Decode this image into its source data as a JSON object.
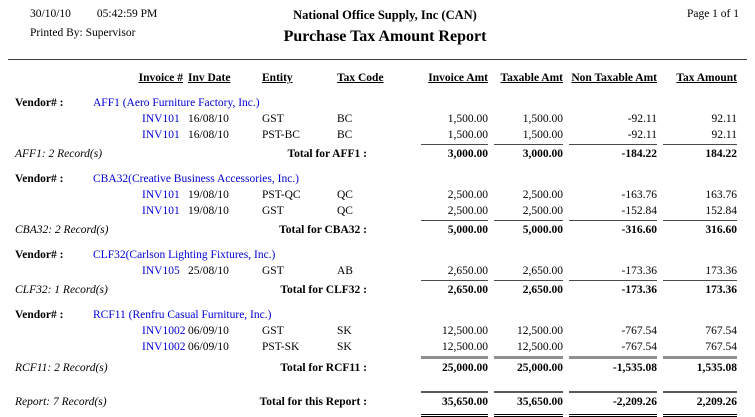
{
  "page_header": {
    "date": "30/10/10",
    "time": "05:42:59 PM",
    "printed_by": "Printed By: Supervisor",
    "company": "National Office Supply, Inc (CAN)",
    "report_title": "Purchase Tax Amount Report",
    "page_number": "Page 1 of 1"
  },
  "table": {
    "columns": [
      "Invoice #",
      "Inv Date",
      "Entity",
      "Tax Code",
      "Invoice Amt",
      "Taxable Amt",
      "Non Taxable Amt",
      "Tax Amount"
    ],
    "vendor_label": "Vendor# :",
    "sections": [
      {
        "vendor": "AFF1 (Aero Furniture Factory, Inc.)",
        "rows": [
          {
            "invoice": "INV101",
            "date": "16/08/10",
            "entity": "GST",
            "tax_code": "BC",
            "invoice_amt": "1,500.00",
            "taxable_amt": "1,500.00",
            "non_taxable_amt": "-92.11",
            "tax_amount": "92.11"
          },
          {
            "invoice": "INV101",
            "date": "16/08/10",
            "entity": "PST-BC",
            "tax_code": "BC",
            "invoice_amt": "1,500.00",
            "taxable_amt": "1,500.00",
            "non_taxable_amt": "-92.11",
            "tax_amount": "92.11"
          }
        ],
        "record_note": "AFF1: 2 Record(s)",
        "total_label": "Total for AFF1 :",
        "totals": {
          "invoice_amt": "3,000.00",
          "taxable_amt": "3,000.00",
          "non_taxable_amt": "-184.22",
          "tax_amount": "184.22"
        },
        "rule": "thin"
      },
      {
        "vendor": "CBA32(Creative Business Accessories, Inc.)",
        "rows": [
          {
            "invoice": "INV101",
            "date": "19/08/10",
            "entity": "PST-QC",
            "tax_code": "QC",
            "invoice_amt": "2,500.00",
            "taxable_amt": "2,500.00",
            "non_taxable_amt": "-163.76",
            "tax_amount": "163.76"
          },
          {
            "invoice": "INV101",
            "date": "19/08/10",
            "entity": "GST",
            "tax_code": "QC",
            "invoice_amt": "2,500.00",
            "taxable_amt": "2,500.00",
            "non_taxable_amt": "-152.84",
            "tax_amount": "152.84"
          }
        ],
        "record_note": "CBA32: 2 Record(s)",
        "total_label": "Total for CBA32 :",
        "totals": {
          "invoice_amt": "5,000.00",
          "taxable_amt": "5,000.00",
          "non_taxable_amt": "-316.60",
          "tax_amount": "316.60"
        },
        "rule": "thin"
      },
      {
        "vendor": "CLF32(Carlson Lighting Fixtures, Inc.)",
        "rows": [
          {
            "invoice": "INV105",
            "date": "25/08/10",
            "entity": "GST",
            "tax_code": "AB",
            "invoice_amt": "2,650.00",
            "taxable_amt": "2,650.00",
            "non_taxable_amt": "-173.36",
            "tax_amount": "173.36"
          }
        ],
        "record_note": "CLF32: 1 Record(s)",
        "total_label": "Total for CLF32 :",
        "totals": {
          "invoice_amt": "2,650.00",
          "taxable_amt": "2,650.00",
          "non_taxable_amt": "-173.36",
          "tax_amount": "173.36"
        },
        "rule": "thin"
      },
      {
        "vendor": "RCF11 (Renfru Casual Furniture, Inc.)",
        "rows": [
          {
            "invoice": "INV1002",
            "date": "06/09/10",
            "entity": "GST",
            "tax_code": "SK",
            "invoice_amt": "12,500.00",
            "taxable_amt": "12,500.00",
            "non_taxable_amt": "-767.54",
            "tax_amount": "767.54"
          },
          {
            "invoice": "INV1002",
            "date": "06/09/10",
            "entity": "PST-SK",
            "tax_code": "SK",
            "invoice_amt": "12,500.00",
            "taxable_amt": "12,500.00",
            "non_taxable_amt": "-767.54",
            "tax_amount": "767.54"
          }
        ],
        "record_note": "RCF11: 2 Record(s)",
        "total_label": "Total for RCF11 :",
        "totals": {
          "invoice_amt": "25,000.00",
          "taxable_amt": "25,000.00",
          "non_taxable_amt": "-1,535.08",
          "tax_amount": "1,535.08"
        },
        "rule": "thick"
      }
    ],
    "report_total": {
      "record_note": "Report: 7 Record(s)",
      "total_label": "Total for this Report :",
      "totals": {
        "invoice_amt": "35,650.00",
        "taxable_amt": "35,650.00",
        "non_taxable_amt": "-2,209.26",
        "tax_amount": "2,209.26"
      }
    }
  },
  "colors": {
    "link_blue": "#0000d6",
    "rule_gray": "#8f8f8f"
  }
}
